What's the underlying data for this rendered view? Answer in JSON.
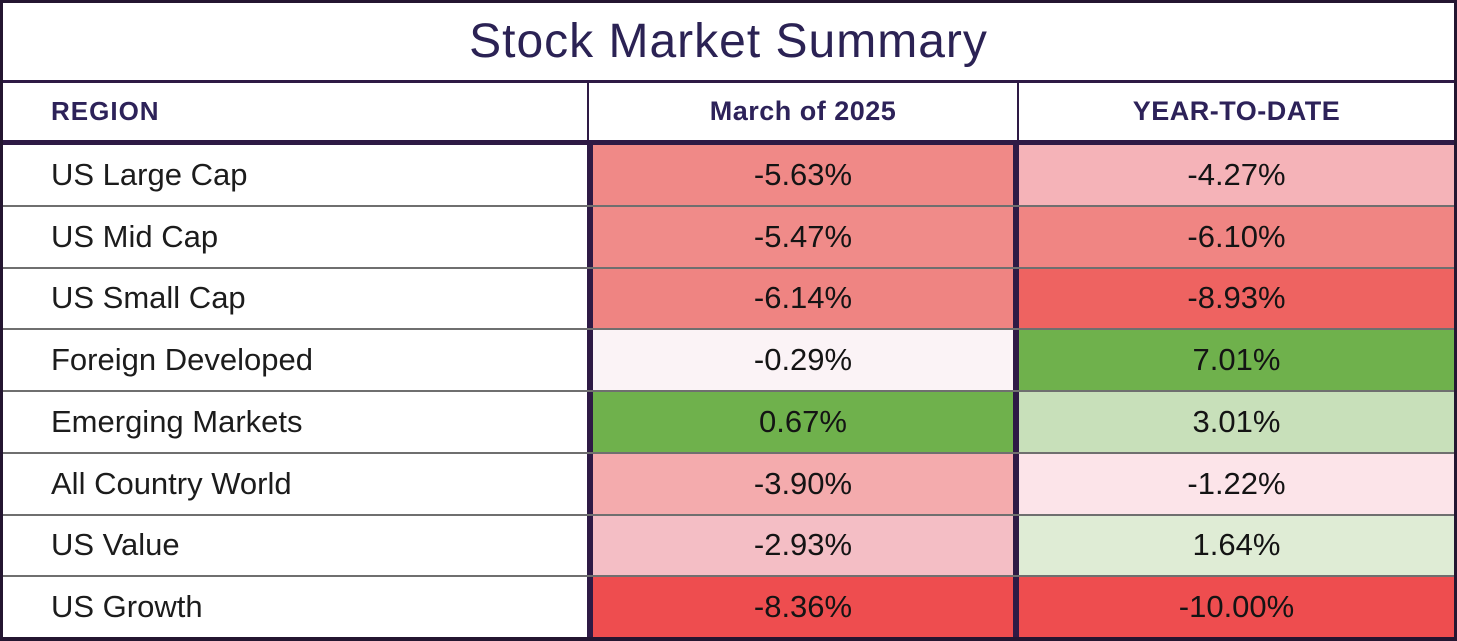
{
  "title": "Stock Market Summary",
  "columns": {
    "region": "REGION",
    "march": "March of 2025",
    "ytd": "YEAR-TO-DATE"
  },
  "rows": [
    {
      "region": "US Large Cap",
      "march": {
        "value": "-5.63%",
        "color": "#f08987"
      },
      "ytd": {
        "value": "-4.27%",
        "color": "#f5b3b8"
      }
    },
    {
      "region": "US Mid Cap",
      "march": {
        "value": "-5.47%",
        "color": "#f08b89"
      },
      "ytd": {
        "value": "-6.10%",
        "color": "#f08583"
      }
    },
    {
      "region": "US Small Cap",
      "march": {
        "value": "-6.14%",
        "color": "#ef8482"
      },
      "ytd": {
        "value": "-8.93%",
        "color": "#ee6361"
      }
    },
    {
      "region": "Foreign Developed",
      "march": {
        "value": "-0.29%",
        "color": "#fbf3f6"
      },
      "ytd": {
        "value": "7.01%",
        "color": "#6fb14c"
      }
    },
    {
      "region": "Emerging Markets",
      "march": {
        "value": "0.67%",
        "color": "#6fb14c"
      },
      "ytd": {
        "value": "3.01%",
        "color": "#c8e0ba"
      }
    },
    {
      "region": "All Country World",
      "march": {
        "value": "-3.90%",
        "color": "#f4abad"
      },
      "ytd": {
        "value": "-1.22%",
        "color": "#fce4e9"
      }
    },
    {
      "region": "US Value",
      "march": {
        "value": "-2.93%",
        "color": "#f4bec5"
      },
      "ytd": {
        "value": "1.64%",
        "color": "#dfecd5"
      }
    },
    {
      "region": "US Growth",
      "march": {
        "value": "-8.36%",
        "color": "#ee4d4f"
      },
      "ytd": {
        "value": "-10.00%",
        "color": "#ee4d4f"
      }
    }
  ],
  "colors": {
    "title_text": "#2b2254",
    "header_text": "#2d2259",
    "outer_border": "#241631",
    "inner_border": "#2e1a45",
    "row_divider": "#6f6f6f",
    "body_text": "#141414",
    "strong_red": "#ee4d4f",
    "strong_green": "#6fb14c"
  },
  "chart_data": {
    "type": "table",
    "title": "Stock Market Summary",
    "columns": [
      "REGION",
      "March of 2025",
      "YEAR-TO-DATE"
    ],
    "categories": [
      "US Large Cap",
      "US Mid Cap",
      "US Small Cap",
      "Foreign Developed",
      "Emerging Markets",
      "All Country World",
      "US Value",
      "US Growth"
    ],
    "series": [
      {
        "name": "March of 2025",
        "values": [
          -5.63,
          -5.47,
          -6.14,
          -0.29,
          0.67,
          -3.9,
          -2.93,
          -8.36
        ]
      },
      {
        "name": "YEAR-TO-DATE",
        "values": [
          -4.27,
          -6.1,
          -8.93,
          7.01,
          3.01,
          -1.22,
          1.64,
          -10.0
        ]
      }
    ],
    "value_format": "percent",
    "layout_hints": "heatmap-style conditional formatting per column: strong red at column minimum through white near zero to strong green at column maximum"
  }
}
